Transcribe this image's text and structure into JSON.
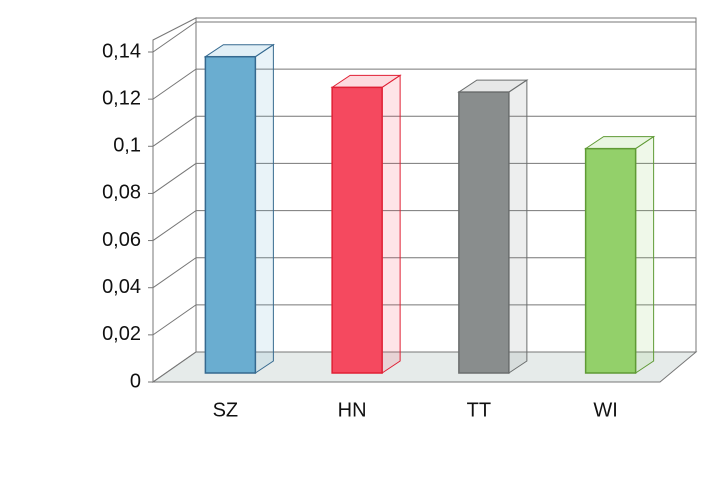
{
  "chart_data": {
    "type": "bar3d",
    "categories": [
      "SZ",
      "HN",
      "TT",
      "WI"
    ],
    "series": [
      {
        "values": [
          0.138,
          0.125,
          0.123,
          0.099
        ]
      }
    ],
    "colors": [
      "#6aadd0",
      "#f5495f",
      "#898d8d",
      "#93d06a"
    ],
    "edge_colors": [
      "#35698f",
      "#e02035",
      "#6b6e6e",
      "#5f9a35"
    ],
    "ylim": [
      0,
      0.14
    ],
    "yticks": [
      0,
      {
        "value": 0.02,
        "label": "0,02"
      },
      {
        "value": 0.04,
        "label": "0,04"
      },
      {
        "value": 0.06,
        "label": "0,06"
      },
      {
        "value": 0.08,
        "label": "0,08"
      },
      {
        "value": 0.1,
        "label": "0,1"
      },
      {
        "value": 0.12,
        "label": "0,12"
      },
      {
        "value": 0.14,
        "label": "0,14"
      }
    ],
    "grid": true
  }
}
